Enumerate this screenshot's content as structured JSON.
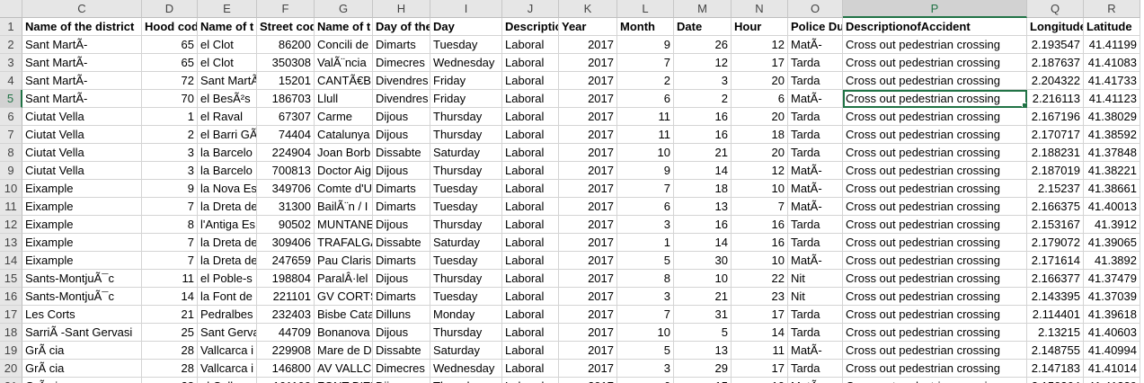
{
  "sheet": {
    "column_letters": [
      "C",
      "D",
      "E",
      "F",
      "G",
      "H",
      "I",
      "J",
      "K",
      "L",
      "M",
      "N",
      "O",
      "P",
      "Q",
      "R"
    ],
    "selected_column": "P",
    "active_row": "5",
    "header_row": {
      "row_number": "1",
      "cells": [
        "Name of the district",
        "Hood cod",
        "Name of t",
        "Street cod",
        "Name of t",
        "Day of the",
        "Day",
        "Descriptic",
        "Year",
        "Month",
        "Date",
        "Hour",
        "Police Du",
        "DescriptionofAccident",
        "Longitude",
        "Latitude"
      ]
    },
    "rows": [
      {
        "n": "2",
        "c": [
          "Sant MartÃ-",
          "65",
          "el Clot",
          "86200",
          "Concili de",
          "Dimarts",
          "Tuesday",
          "Laboral",
          "2017",
          "9",
          "26",
          "12",
          "MatÃ-",
          "Cross out pedestrian crossing",
          "2.193547",
          "41.41199"
        ]
      },
      {
        "n": "3",
        "c": [
          "Sant MartÃ-",
          "65",
          "el Clot",
          "350308",
          "ValÃ¨ncia",
          "Dimecres",
          "Wednesday",
          "Laboral",
          "2017",
          "7",
          "12",
          "17",
          "Tarda",
          "Cross out pedestrian crossing",
          "2.187637",
          "41.41083"
        ]
      },
      {
        "n": "4",
        "c": [
          "Sant MartÃ-",
          "72",
          "Sant MartÃ",
          "15201",
          "CANTÃ€BI",
          "Divendres",
          "Friday",
          "Laboral",
          "2017",
          "2",
          "3",
          "20",
          "Tarda",
          "Cross out pedestrian crossing",
          "2.204322",
          "41.41733"
        ]
      },
      {
        "n": "5",
        "c": [
          "Sant MartÃ-",
          "70",
          "el BesÃ²s",
          "186703",
          "Llull",
          "Divendres",
          "Friday",
          "Laboral",
          "2017",
          "6",
          "2",
          "6",
          "MatÃ-",
          "Cross out pedestrian crossing",
          "2.216113",
          "41.41123"
        ]
      },
      {
        "n": "6",
        "c": [
          "Ciutat Vella",
          "1",
          "el Raval",
          "67307",
          "Carme",
          "Dijous",
          "Thursday",
          "Laboral",
          "2017",
          "11",
          "16",
          "20",
          "Tarda",
          "Cross out pedestrian crossing",
          "2.167196",
          "41.38029"
        ]
      },
      {
        "n": "7",
        "c": [
          "Ciutat Vella",
          "2",
          "el Barri GÃ",
          "74404",
          "Catalunya",
          "Dijous",
          "Thursday",
          "Laboral",
          "2017",
          "11",
          "16",
          "18",
          "Tarda",
          "Cross out pedestrian crossing",
          "2.170717",
          "41.38592"
        ]
      },
      {
        "n": "8",
        "c": [
          "Ciutat Vella",
          "3",
          "la Barcelo",
          "224904",
          "Joan Borb",
          "Dissabte",
          "Saturday",
          "Laboral",
          "2017",
          "10",
          "21",
          "20",
          "Tarda",
          "Cross out pedestrian crossing",
          "2.188231",
          "41.37848"
        ]
      },
      {
        "n": "9",
        "c": [
          "Ciutat Vella",
          "3",
          "la Barcelo",
          "700813",
          "Doctor Aig",
          "Dijous",
          "Thursday",
          "Laboral",
          "2017",
          "9",
          "14",
          "12",
          "MatÃ-",
          "Cross out pedestrian crossing",
          "2.187019",
          "41.38221"
        ]
      },
      {
        "n": "10",
        "c": [
          "Eixample",
          "9",
          "la Nova Es",
          "349706",
          "Comte d'U",
          "Dimarts",
          "Tuesday",
          "Laboral",
          "2017",
          "7",
          "18",
          "10",
          "MatÃ-",
          "Cross out pedestrian crossing",
          "2.15237",
          "41.38661"
        ]
      },
      {
        "n": "11",
        "c": [
          "Eixample",
          "7",
          "la Dreta de",
          "31300",
          "BailÃ¨n / I",
          "Dimarts",
          "Tuesday",
          "Laboral",
          "2017",
          "6",
          "13",
          "7",
          "MatÃ-",
          "Cross out pedestrian crossing",
          "2.166375",
          "41.40013"
        ]
      },
      {
        "n": "12",
        "c": [
          "Eixample",
          "8",
          "l'Antiga Es",
          "90502",
          "MUNTANE",
          "Dijous",
          "Thursday",
          "Laboral",
          "2017",
          "3",
          "16",
          "16",
          "Tarda",
          "Cross out pedestrian crossing",
          "2.153167",
          "41.3912"
        ]
      },
      {
        "n": "13",
        "c": [
          "Eixample",
          "7",
          "la Dreta de",
          "309406",
          "TRAFALGA",
          "Dissabte",
          "Saturday",
          "Laboral",
          "2017",
          "1",
          "14",
          "16",
          "Tarda",
          "Cross out pedestrian crossing",
          "2.179072",
          "41.39065"
        ]
      },
      {
        "n": "14",
        "c": [
          "Eixample",
          "7",
          "la Dreta de",
          "247659",
          "Pau Claris",
          "Dimarts",
          "Tuesday",
          "Laboral",
          "2017",
          "5",
          "30",
          "10",
          "MatÃ-",
          "Cross out pedestrian crossing",
          "2.171614",
          "41.3892"
        ]
      },
      {
        "n": "15",
        "c": [
          "Sants-MontjuÃ¯c",
          "11",
          "el Poble-s",
          "198804",
          "ParalÂ·lel",
          "Dijous",
          "Thursday",
          "Laboral",
          "2017",
          "8",
          "10",
          "22",
          "Nit",
          "Cross out pedestrian crossing",
          "2.166377",
          "41.37479"
        ]
      },
      {
        "n": "16",
        "c": [
          "Sants-MontjuÃ¯c",
          "14",
          "la Font de",
          "221101",
          "GV CORTS",
          "Dimarts",
          "Tuesday",
          "Laboral",
          "2017",
          "3",
          "21",
          "23",
          "Nit",
          "Cross out pedestrian crossing",
          "2.143395",
          "41.37039"
        ]
      },
      {
        "n": "17",
        "c": [
          "Les Corts",
          "21",
          "Pedralbes",
          "232403",
          "Bisbe Cata",
          "Dilluns",
          "Monday",
          "Laboral",
          "2017",
          "7",
          "31",
          "17",
          "Tarda",
          "Cross out pedestrian crossing",
          "2.114401",
          "41.39618"
        ]
      },
      {
        "n": "18",
        "c": [
          "SarriÃ -Sant Gervasi",
          "25",
          "Sant Gerva",
          "44709",
          "Bonanova",
          "Dijous",
          "Thursday",
          "Laboral",
          "2017",
          "10",
          "5",
          "14",
          "Tarda",
          "Cross out pedestrian crossing",
          "2.13215",
          "41.40603"
        ]
      },
      {
        "n": "19",
        "c": [
          "GrÃ cia",
          "28",
          "Vallcarca i",
          "229908",
          "Mare de D",
          "Dissabte",
          "Saturday",
          "Laboral",
          "2017",
          "5",
          "13",
          "11",
          "MatÃ-",
          "Cross out pedestrian crossing",
          "2.148755",
          "41.40994"
        ]
      },
      {
        "n": "20",
        "c": [
          "GrÃ cia",
          "28",
          "Vallcarca i",
          "146800",
          "AV VALLC",
          "Dimecres",
          "Wednesday",
          "Laboral",
          "2017",
          "3",
          "29",
          "17",
          "Tarda",
          "Cross out pedestrian crossing",
          "2.147183",
          "41.41014"
        ]
      },
      {
        "n": "21",
        "c": [
          "GrÃ cia",
          "28",
          "el Coll",
          "161100",
          "FONT D'EN",
          "Dijous",
          "Thursday",
          "Laboral",
          "2017",
          "6",
          "15",
          "10",
          "MatÃ-",
          "Cross out pedestrian crossing",
          "2.150264",
          "41.41239"
        ]
      }
    ]
  }
}
